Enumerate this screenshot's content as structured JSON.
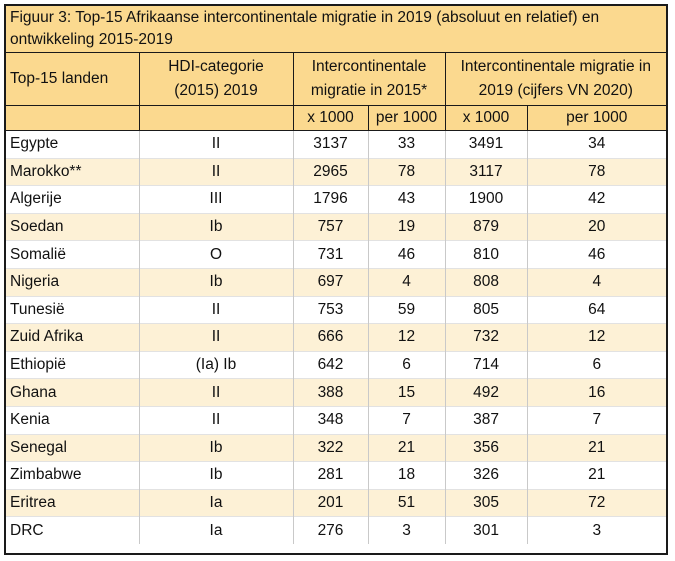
{
  "title": "Figuur 3: Top-15 Afrikaanse intercontinentale migratie in 2019 (absoluut en relatief) en ontwikkeling 2015-2019",
  "headers": {
    "land": "Top-15 landen",
    "hdi_line1": "HDI-categorie",
    "hdi_line2": "(2015) 2019",
    "mig2015_line1": "Intercontinentale",
    "mig2015_line2": "migratie in 2015*",
    "mig2019_line1": "Intercontinentale migratie in",
    "mig2019_line2": "2019 (cijfers VN 2020)",
    "sub_abs_2015": "x 1000",
    "sub_rel_2015": "per 1000",
    "sub_abs_2019": "x 1000",
    "sub_rel_2019": "per 1000"
  },
  "rows": [
    {
      "land": "Egypte",
      "hdi": "II",
      "abs2015": "3137",
      "rel2015": "33",
      "abs2019": "3491",
      "rel2019": "34"
    },
    {
      "land": "Marokko**",
      "hdi": "II",
      "abs2015": "2965",
      "rel2015": "78",
      "abs2019": "3117",
      "rel2019": "78"
    },
    {
      "land": "Algerije",
      "hdi": "III",
      "abs2015": "1796",
      "rel2015": "43",
      "abs2019": "1900",
      "rel2019": "42"
    },
    {
      "land": "Soedan",
      "hdi": "Ib",
      "abs2015": "757",
      "rel2015": "19",
      "abs2019": "879",
      "rel2019": "20"
    },
    {
      "land": "Somalië",
      "hdi": "O",
      "abs2015": "731",
      "rel2015": "46",
      "abs2019": "810",
      "rel2019": "46"
    },
    {
      "land": "Nigeria",
      "hdi": "Ib",
      "abs2015": "697",
      "rel2015": "4",
      "abs2019": "808",
      "rel2019": "4"
    },
    {
      "land": "Tunesië",
      "hdi": "II",
      "abs2015": "753",
      "rel2015": "59",
      "abs2019": "805",
      "rel2019": "64"
    },
    {
      "land": "Zuid Afrika",
      "hdi": "II",
      "abs2015": "666",
      "rel2015": "12",
      "abs2019": "732",
      "rel2019": "12"
    },
    {
      "land": "Ethiopië",
      "hdi": "(Ia) Ib",
      "abs2015": "642",
      "rel2015": "6",
      "abs2019": "714",
      "rel2019": "6"
    },
    {
      "land": "Ghana",
      "hdi": "II",
      "abs2015": "388",
      "rel2015": "15",
      "abs2019": "492",
      "rel2019": "16"
    },
    {
      "land": "Kenia",
      "hdi": "II",
      "abs2015": "348",
      "rel2015": "7",
      "abs2019": "387",
      "rel2019": "7"
    },
    {
      "land": "Senegal",
      "hdi": "Ib",
      "abs2015": "322",
      "rel2015": "21",
      "abs2019": "356",
      "rel2019": "21"
    },
    {
      "land": "Zimbabwe",
      "hdi": "Ib",
      "abs2015": "281",
      "rel2015": "18",
      "abs2019": "326",
      "rel2019": "21"
    },
    {
      "land": "Eritrea",
      "hdi": "Ia",
      "abs2015": "201",
      "rel2015": "51",
      "abs2019": "305",
      "rel2019": "72"
    },
    {
      "land": "DRC",
      "hdi": "Ia",
      "abs2015": "276",
      "rel2015": "3",
      "abs2019": "301",
      "rel2019": "3"
    }
  ],
  "colors": {
    "header_bg": "#fbd98f",
    "row_shade": "#fdf1d6",
    "border": "#1a1a1a"
  }
}
